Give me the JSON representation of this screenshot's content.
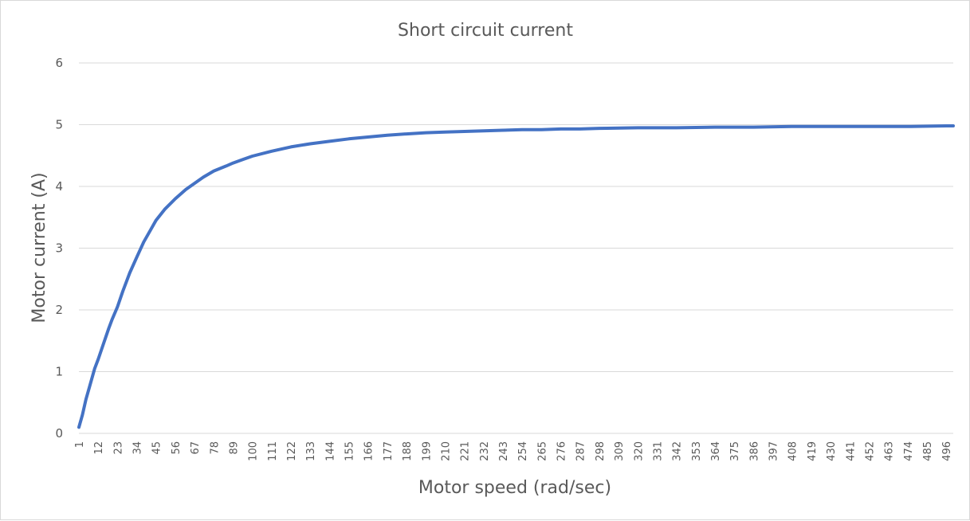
{
  "chart_data": {
    "type": "line",
    "title": "Short circuit current",
    "xlabel": "Motor speed (rad/sec)",
    "ylabel": "Motor current (A)",
    "ylim": [
      0,
      6
    ],
    "yticks": [
      0,
      1,
      2,
      3,
      4,
      5,
      6
    ],
    "grid": true,
    "legend": "none",
    "x_range": [
      1,
      500
    ],
    "xtick_labels": [
      "1",
      "12",
      "23",
      "34",
      "45",
      "56",
      "67",
      "78",
      "89",
      "100",
      "111",
      "122",
      "133",
      "144",
      "155",
      "166",
      "177",
      "188",
      "199",
      "210",
      "221",
      "232",
      "243",
      "254",
      "265",
      "276",
      "287",
      "298",
      "309",
      "320",
      "331",
      "342",
      "353",
      "364",
      "375",
      "386",
      "397",
      "408",
      "419",
      "430",
      "441",
      "452",
      "463",
      "474",
      "485",
      "496"
    ],
    "series": [
      {
        "color": "#4472c4",
        "x": [
          1,
          3,
          5,
          7,
          10,
          12,
          15,
          18,
          20,
          23,
          26,
          30,
          34,
          38,
          42,
          45,
          50,
          56,
          62,
          67,
          72,
          78,
          85,
          89,
          95,
          100,
          111,
          122,
          133,
          144,
          155,
          166,
          177,
          188,
          199,
          210,
          221,
          232,
          243,
          254,
          265,
          276,
          287,
          298,
          320,
          342,
          364,
          386,
          408,
          430,
          452,
          474,
          496,
          500
        ],
        "y": [
          0.1,
          0.3,
          0.55,
          0.75,
          1.05,
          1.2,
          1.45,
          1.7,
          1.85,
          2.05,
          2.3,
          2.6,
          2.85,
          3.1,
          3.3,
          3.45,
          3.63,
          3.8,
          3.95,
          4.05,
          4.15,
          4.25,
          4.33,
          4.38,
          4.44,
          4.49,
          4.57,
          4.64,
          4.69,
          4.73,
          4.77,
          4.8,
          4.83,
          4.85,
          4.87,
          4.88,
          4.89,
          4.9,
          4.91,
          4.92,
          4.92,
          4.93,
          4.93,
          4.94,
          4.95,
          4.95,
          4.96,
          4.96,
          4.97,
          4.97,
          4.97,
          4.97,
          4.98,
          4.98
        ]
      }
    ]
  }
}
